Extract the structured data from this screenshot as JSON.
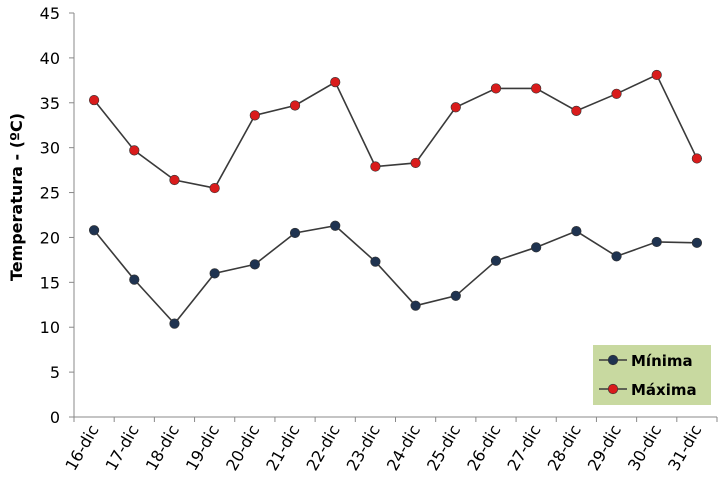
{
  "chart_data": {
    "type": "line",
    "title": "",
    "xlabel": "",
    "ylabel": "Temperatura  - (ºC)",
    "ylim": [
      0,
      45
    ],
    "yticks": [
      0,
      5,
      10,
      15,
      20,
      25,
      30,
      35,
      40,
      45
    ],
    "grid": false,
    "legend_position": "bottom-right",
    "categories": [
      "16-dic",
      "17-dic",
      "18-dic",
      "19-dic",
      "20-dic",
      "21-dic",
      "22-dic",
      "23-dic",
      "24-dic",
      "25-dic",
      "26-dic",
      "27-dic",
      "28-dic",
      "29-dic",
      "30-dic",
      "31-dic"
    ],
    "series": [
      {
        "name": "Mínima",
        "marker_color": "#1f3350",
        "line_color": "#3a3a3a",
        "values": [
          20.8,
          15.3,
          10.4,
          16.0,
          17.0,
          20.5,
          21.3,
          17.3,
          12.4,
          13.5,
          17.4,
          18.9,
          20.7,
          17.9,
          19.5,
          19.4
        ]
      },
      {
        "name": "Máxima",
        "marker_color": "#d91c1c",
        "line_color": "#3a3a3a",
        "values": [
          35.3,
          29.7,
          26.4,
          25.5,
          33.6,
          34.7,
          37.3,
          27.9,
          28.3,
          34.5,
          36.6,
          36.6,
          34.1,
          36.0,
          38.1,
          28.8
        ]
      }
    ],
    "legend_background": "#c8d9a0"
  }
}
